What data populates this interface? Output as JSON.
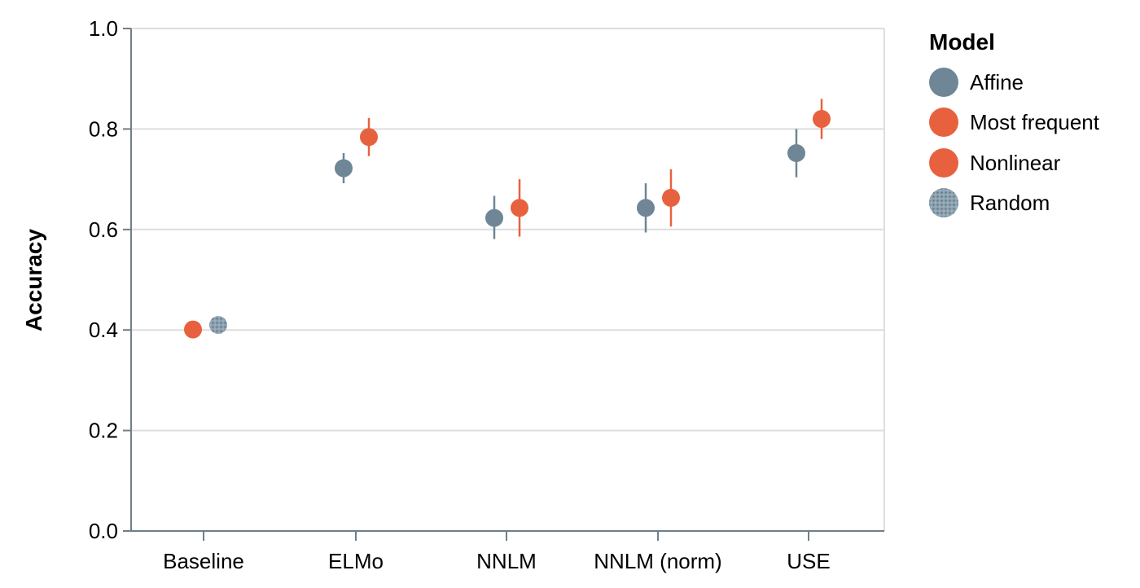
{
  "chart_data": {
    "type": "scatter",
    "title": "",
    "xlabel": "",
    "ylabel": "Accuracy",
    "ylim": [
      0,
      1
    ],
    "yticks": [
      "0.0",
      "0.2",
      "0.4",
      "0.6",
      "0.8",
      "1.0"
    ],
    "categories": [
      "Baseline",
      "ELMo",
      "NNLM",
      "NNLM (norm)",
      "USE"
    ],
    "grid": true,
    "legend": {
      "title": "Model",
      "position": "right",
      "entries": [
        {
          "name": "Affine",
          "color": "#6e8696"
        },
        {
          "name": "Most frequent",
          "color": "#e8613f"
        },
        {
          "name": "Nonlinear",
          "color": "#e8613f"
        },
        {
          "name": "Random",
          "color": "#6e8696",
          "pattern": "dotted"
        }
      ]
    },
    "series": [
      {
        "name": "Affine",
        "color": "#6e8696",
        "points": [
          {
            "category": "ELMo",
            "y": 0.722,
            "low": 0.692,
            "high": 0.752
          },
          {
            "category": "NNLM",
            "y": 0.623,
            "low": 0.581,
            "high": 0.667
          },
          {
            "category": "NNLM (norm)",
            "y": 0.643,
            "low": 0.594,
            "high": 0.692
          },
          {
            "category": "USE",
            "y": 0.752,
            "low": 0.704,
            "high": 0.8
          }
        ]
      },
      {
        "name": "Most frequent",
        "color": "#e8613f",
        "points": [
          {
            "category": "Baseline",
            "y": 0.401,
            "low": 0.401,
            "high": 0.401
          }
        ]
      },
      {
        "name": "Nonlinear",
        "color": "#e8613f",
        "points": [
          {
            "category": "ELMo",
            "y": 0.784,
            "low": 0.746,
            "high": 0.822
          },
          {
            "category": "NNLM",
            "y": 0.643,
            "low": 0.586,
            "high": 0.7
          },
          {
            "category": "NNLM (norm)",
            "y": 0.663,
            "low": 0.606,
            "high": 0.72
          },
          {
            "category": "USE",
            "y": 0.82,
            "low": 0.78,
            "high": 0.86
          }
        ]
      },
      {
        "name": "Random",
        "color": "#6e8696",
        "pattern": "dotted",
        "points": [
          {
            "category": "Baseline",
            "y": 0.41,
            "low": 0.41,
            "high": 0.41
          }
        ]
      }
    ]
  }
}
